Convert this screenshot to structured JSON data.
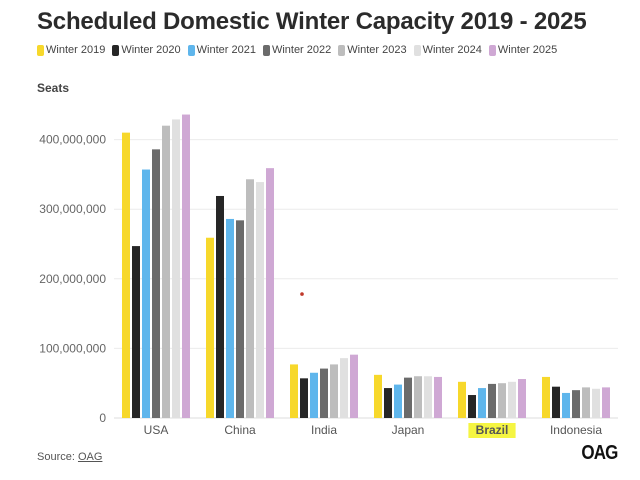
{
  "chart_data": {
    "type": "bar",
    "title": "Scheduled Domestic Winter Capacity 2019 - 2025",
    "xlabel": "",
    "ylabel": "Seats",
    "ylim": [
      0,
      450000000
    ],
    "yticks": [
      0,
      100000000,
      200000000,
      300000000,
      400000000
    ],
    "ytick_labels": [
      "0",
      "100,000,000",
      "200,000,000",
      "300,000,000",
      "400,000,000"
    ],
    "grid": true,
    "legend_position": "top-left",
    "categories": [
      "USA",
      "China",
      "India",
      "Japan",
      "Brazil",
      "Indonesia"
    ],
    "highlighted_category": "Brazil",
    "series": [
      {
        "name": "Winter 2019",
        "color": "#f7d82b",
        "values": [
          410000000,
          259000000,
          77000000,
          62000000,
          52000000,
          59000000
        ]
      },
      {
        "name": "Winter 2020",
        "color": "#262626",
        "values": [
          247000000,
          319000000,
          57000000,
          43000000,
          33000000,
          45000000
        ]
      },
      {
        "name": "Winter 2021",
        "color": "#5fb6ec",
        "values": [
          357000000,
          286000000,
          65000000,
          48000000,
          43000000,
          36000000
        ]
      },
      {
        "name": "Winter 2022",
        "color": "#6b6b6b",
        "values": [
          386000000,
          284000000,
          71000000,
          58000000,
          49000000,
          40000000
        ]
      },
      {
        "name": "Winter 2023",
        "color": "#bdbdbd",
        "values": [
          420000000,
          343000000,
          77000000,
          60000000,
          50000000,
          44000000
        ]
      },
      {
        "name": "Winter 2024",
        "color": "#e0e0e0",
        "values": [
          429000000,
          339000000,
          86000000,
          60000000,
          52000000,
          42000000
        ]
      },
      {
        "name": "Winter 2025",
        "color": "#cfa8d4",
        "values": [
          436000000,
          359000000,
          91000000,
          59000000,
          56000000,
          44000000
        ]
      }
    ],
    "annotations": [
      {
        "type": "marker",
        "color": "#c0392b",
        "near_category": "India",
        "y": 178000000
      }
    ]
  },
  "source": {
    "prefix": "Source: ",
    "link": "OAG"
  },
  "logo": "OAG",
  "highlight_color": "#f5f542"
}
